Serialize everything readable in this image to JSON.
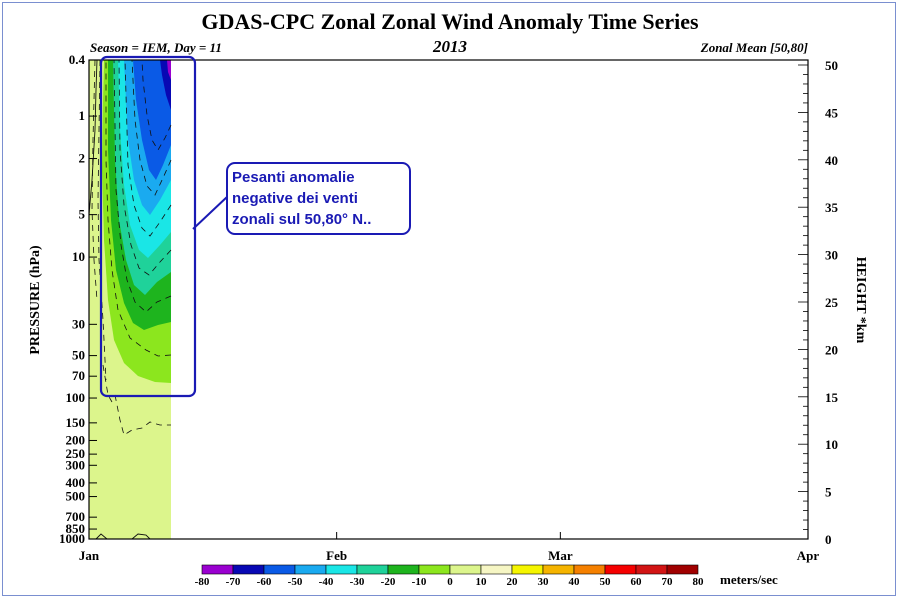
{
  "chart_data": {
    "type": "heatmap",
    "title": "GDAS-CPC Zonal Zonal Wind Anomaly Time Series",
    "subtitle_left": "Season = IEM, Day =  11",
    "subtitle_center": "2013",
    "subtitle_right": "Zonal Mean [50,80]",
    "ylabel_left": "PRESSURE (hPa)",
    "ylabel_right": "HEIGHT *km",
    "y_log_scale": true,
    "ylim": [
      1000,
      0.4
    ],
    "y_ticks": [
      "0.4",
      "1",
      "2",
      "5",
      "10",
      "30",
      "50",
      "70",
      "100",
      "150",
      "200",
      "250",
      "300",
      "400",
      "500",
      "700",
      "850",
      "1000"
    ],
    "y_tick_values": [
      0.4,
      1,
      2,
      5,
      10,
      30,
      50,
      70,
      100,
      150,
      200,
      250,
      300,
      400,
      500,
      700,
      850,
      1000
    ],
    "height_ticks": [
      "0",
      "5",
      "10",
      "15",
      "20",
      "25",
      "30",
      "35",
      "40",
      "45",
      "50"
    ],
    "height_tick_values": [
      0,
      5,
      10,
      15,
      20,
      25,
      30,
      35,
      40,
      45,
      50
    ],
    "x_ticks": [
      "Jan",
      "Feb",
      "Mar",
      "Apr"
    ],
    "x_tick_days": [
      0,
      31,
      59,
      90
    ],
    "data_end_day": 11,
    "colorbar": {
      "labels": [
        "-80",
        "-70",
        "-60",
        "-50",
        "-40",
        "-30",
        "-20",
        "-10",
        "0",
        "10",
        "20",
        "30",
        "40",
        "50",
        "60",
        "70",
        "80"
      ],
      "colors": [
        "#9a00d0",
        "#0808b4",
        "#0a5ae6",
        "#1aaaf0",
        "#1ae6e6",
        "#1fd29a",
        "#1eb41e",
        "#8ce61e",
        "#dcf58c",
        "#f6f6c4",
        "#f5f500",
        "#f5b400",
        "#f58000",
        "#f50000",
        "#d21414",
        "#a00000",
        "#a07c3a"
      ],
      "unit": "meters/sec"
    },
    "approx_anomaly": [
      {
        "pressure": 0.4,
        "min_value": -80
      },
      {
        "pressure": 1,
        "min_value": -70
      },
      {
        "pressure": 2,
        "min_value": -60
      },
      {
        "pressure": 5,
        "min_value": -50
      },
      {
        "pressure": 10,
        "min_value": -40
      },
      {
        "pressure": 30,
        "min_value": -20
      },
      {
        "pressure": 70,
        "min_value": -10
      },
      {
        "pressure": 1000,
        "min_value": -10
      }
    ],
    "annotation": "Pesanti anomalie\nnegative dei venti\nzonali sul 50,80° N.."
  }
}
